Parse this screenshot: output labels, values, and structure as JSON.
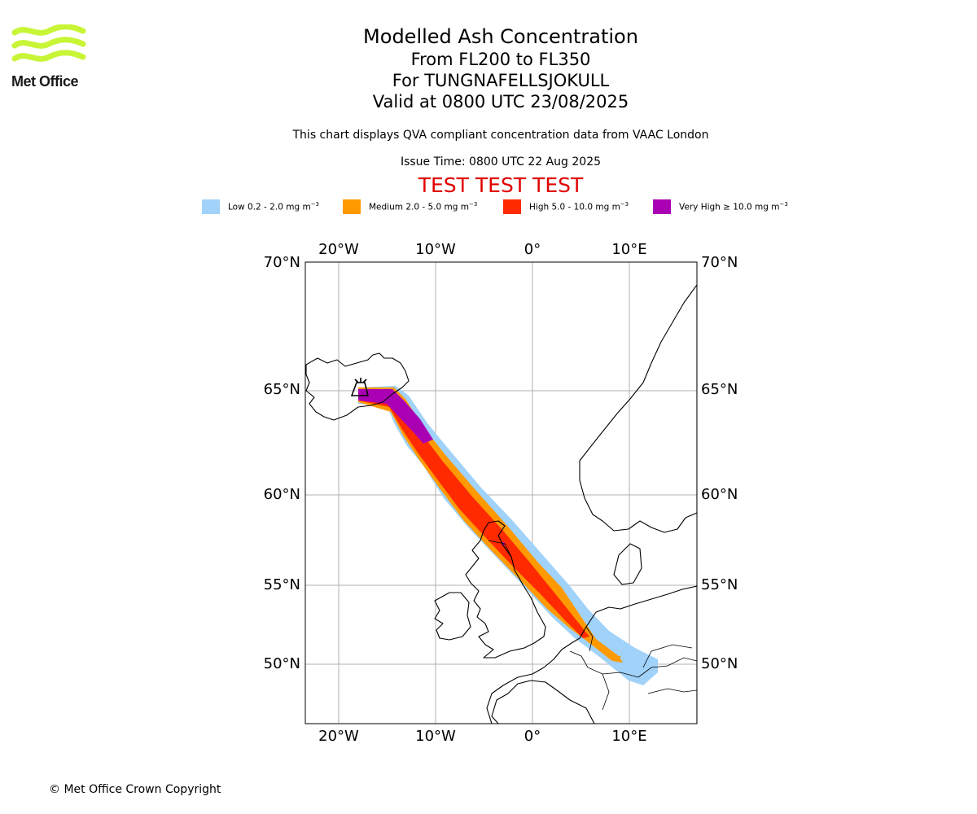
{
  "logo": {
    "name": "Met Office",
    "colors": {
      "waves": "#c8f536",
      "text": "#1a1a1a"
    }
  },
  "title": "Modelled Ash Concentration",
  "subtitle_lines": [
    "From FL200 to FL350",
    "For TUNGNAFELLSJOKULL",
    "Valid at 0800 UTC 23/08/2025"
  ],
  "note": "This chart displays QVA compliant concentration data from VAAC London",
  "issue_time": "Issue Time: 0800 UTC 22 Aug 2025",
  "test_banner": "TEST TEST TEST",
  "test_color": "#e00000",
  "legend": [
    {
      "label": "Low 0.2 - 2.0 mg m",
      "sup": "−3",
      "color": "#a0d2fa"
    },
    {
      "label": "Medium 2.0 - 5.0 mg m",
      "sup": "−3",
      "color": "#ff9900"
    },
    {
      "label": "High 5.0 - 10.0 mg m",
      "sup": "−3",
      "color": "#ff2a00"
    },
    {
      "label": "Very High ≥ 10.0 mg m",
      "sup": "−3",
      "color": "#aa00b4"
    }
  ],
  "map": {
    "lon_ticks": [
      "20°W",
      "10°W",
      "0°",
      "10°E"
    ],
    "lat_ticks": [
      "70°N",
      "65°N",
      "60°N",
      "55°N",
      "50°N"
    ],
    "volcano_icon": "volcano-icon",
    "gridlines": true
  },
  "copyright": "© Met Office Crown Copyright"
}
